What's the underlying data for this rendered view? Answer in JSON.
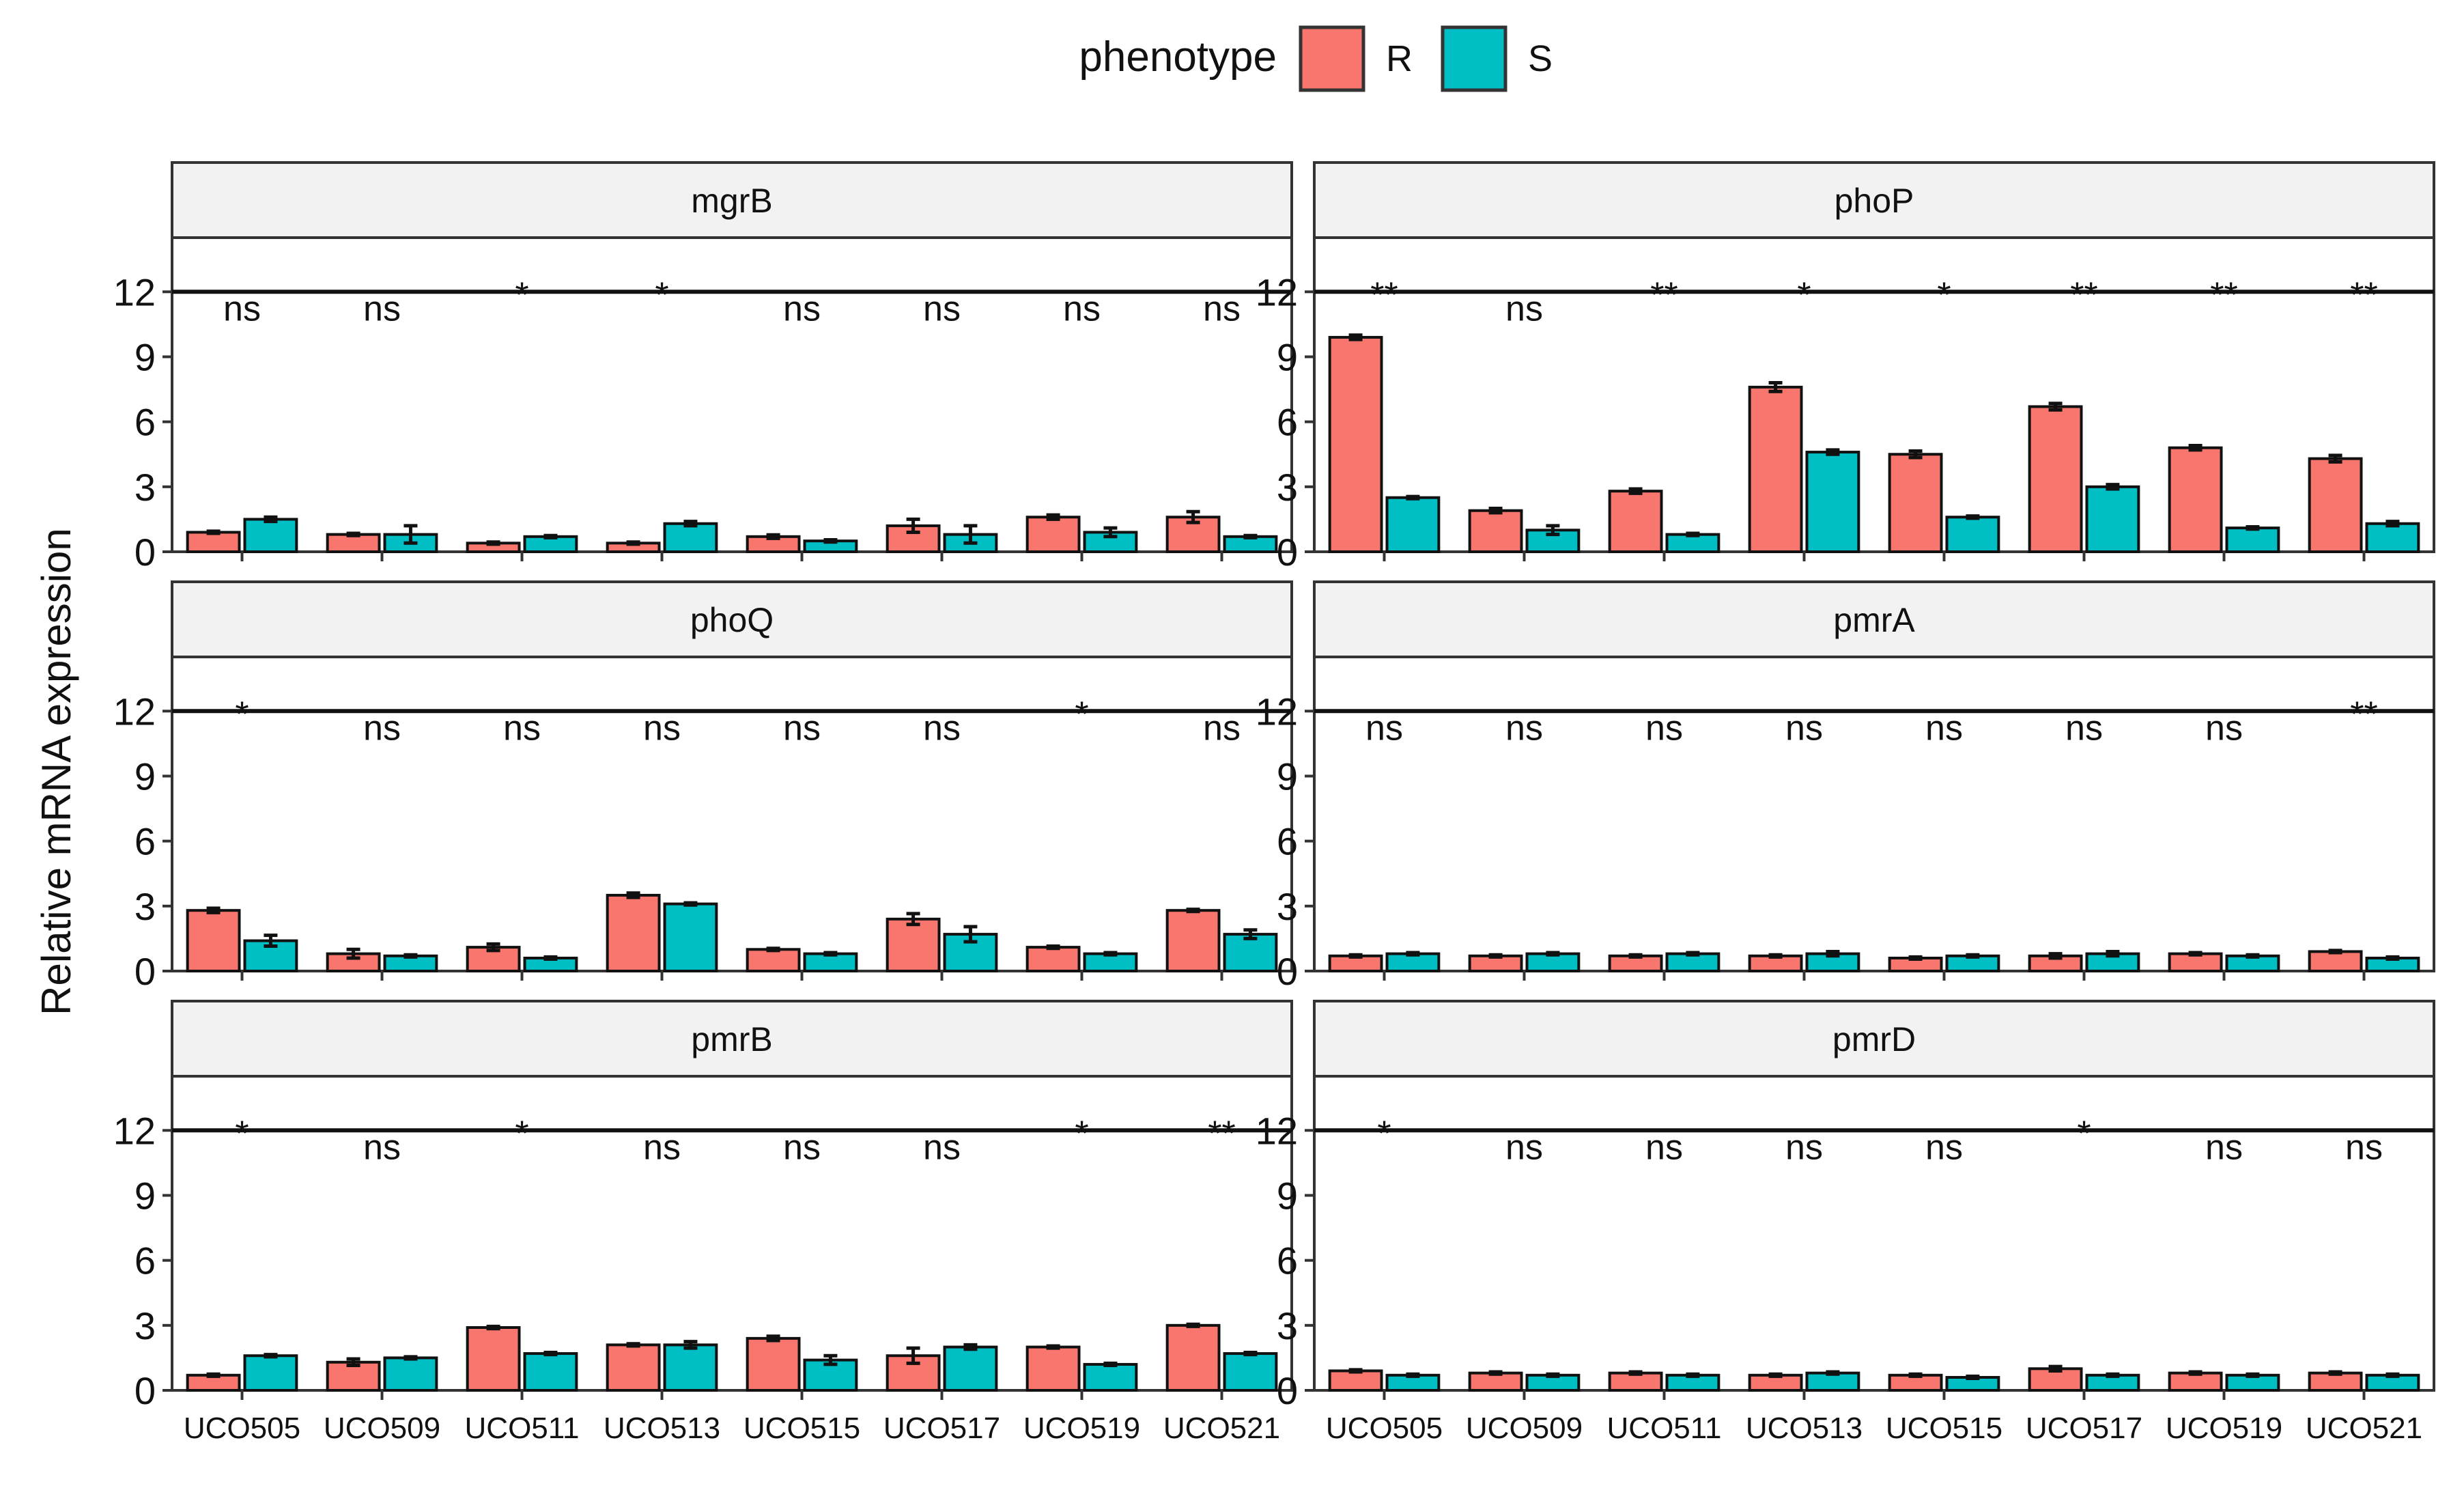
{
  "legend": {
    "title": "phenotype",
    "items": [
      {
        "label": "R",
        "color": "#F8766D"
      },
      {
        "label": "S",
        "color": "#00BFC4"
      }
    ]
  },
  "chart_data": {
    "type": "bar",
    "ylabel": "Relative mRNA expression",
    "ylim": [
      0,
      14.5
    ],
    "yticks": [
      0,
      3,
      6,
      9,
      12
    ],
    "categories": [
      "UCO505",
      "UCO509",
      "UCO511",
      "UCO513",
      "UCO515",
      "UCO517",
      "UCO519",
      "UCO521"
    ],
    "groups": [
      "R",
      "S"
    ],
    "colors": {
      "R": "#F8766D",
      "S": "#00BFC4"
    },
    "significance_line_y": 12,
    "panels": [
      {
        "gene": "mgrB",
        "R": [
          0.9,
          0.8,
          0.4,
          0.4,
          0.7,
          1.2,
          1.6,
          1.6
        ],
        "S": [
          1.5,
          0.8,
          0.7,
          1.3,
          0.5,
          0.8,
          0.9,
          0.7
        ],
        "R_err": [
          0.05,
          0.05,
          0.05,
          0.05,
          0.08,
          0.3,
          0.1,
          0.25
        ],
        "S_err": [
          0.1,
          0.4,
          0.05,
          0.1,
          0.05,
          0.4,
          0.2,
          0.05
        ],
        "sig": [
          "ns",
          "ns",
          "*",
          "*",
          "ns",
          "ns",
          "ns",
          "ns"
        ]
      },
      {
        "gene": "phoP",
        "R": [
          9.9,
          1.9,
          2.8,
          7.6,
          4.5,
          6.7,
          4.8,
          4.3
        ],
        "S": [
          2.5,
          1.0,
          0.8,
          4.6,
          1.6,
          3.0,
          1.1,
          1.3
        ],
        "R_err": [
          0.1,
          0.1,
          0.1,
          0.2,
          0.15,
          0.15,
          0.1,
          0.15
        ],
        "S_err": [
          0.05,
          0.2,
          0.05,
          0.1,
          0.05,
          0.1,
          0.05,
          0.1
        ],
        "sig": [
          "**",
          "ns",
          "**",
          "*",
          "*",
          "**",
          "**",
          "**"
        ]
      },
      {
        "gene": "phoQ",
        "R": [
          2.8,
          0.8,
          1.1,
          3.5,
          1.0,
          2.4,
          1.1,
          2.8
        ],
        "S": [
          1.4,
          0.7,
          0.6,
          3.1,
          0.8,
          1.7,
          0.8,
          1.7
        ],
        "R_err": [
          0.1,
          0.2,
          0.15,
          0.1,
          0.05,
          0.25,
          0.05,
          0.05
        ],
        "S_err": [
          0.25,
          0.05,
          0.05,
          0.05,
          0.05,
          0.35,
          0.05,
          0.2
        ],
        "sig": [
          "*",
          "ns",
          "ns",
          "ns",
          "ns",
          "ns",
          "*",
          "ns"
        ]
      },
      {
        "gene": "pmrA",
        "R": [
          0.7,
          0.7,
          0.7,
          0.7,
          0.6,
          0.7,
          0.8,
          0.9
        ],
        "S": [
          0.8,
          0.8,
          0.8,
          0.8,
          0.7,
          0.8,
          0.7,
          0.6
        ],
        "R_err": [
          0.05,
          0.05,
          0.05,
          0.05,
          0.05,
          0.1,
          0.05,
          0.05
        ],
        "S_err": [
          0.05,
          0.05,
          0.05,
          0.1,
          0.05,
          0.1,
          0.05,
          0.05
        ],
        "sig": [
          "ns",
          "ns",
          "ns",
          "ns",
          "ns",
          "ns",
          "ns",
          "**"
        ]
      },
      {
        "gene": "pmrB",
        "R": [
          0.7,
          1.3,
          2.9,
          2.1,
          2.4,
          1.6,
          2.0,
          3.0
        ],
        "S": [
          1.6,
          1.5,
          1.7,
          2.1,
          1.4,
          2.0,
          1.2,
          1.7
        ],
        "R_err": [
          0.05,
          0.15,
          0.05,
          0.05,
          0.1,
          0.35,
          0.05,
          0.05
        ],
        "S_err": [
          0.05,
          0.05,
          0.05,
          0.15,
          0.2,
          0.1,
          0.05,
          0.05
        ],
        "sig": [
          "*",
          "ns",
          "*",
          "ns",
          "ns",
          "ns",
          "*",
          "**"
        ]
      },
      {
        "gene": "pmrD",
        "R": [
          0.9,
          0.8,
          0.8,
          0.7,
          0.7,
          1.0,
          0.8,
          0.8
        ],
        "S": [
          0.7,
          0.7,
          0.7,
          0.8,
          0.6,
          0.7,
          0.7,
          0.7
        ],
        "R_err": [
          0.05,
          0.05,
          0.05,
          0.05,
          0.05,
          0.1,
          0.05,
          0.05
        ],
        "S_err": [
          0.05,
          0.05,
          0.05,
          0.05,
          0.05,
          0.05,
          0.05,
          0.05
        ],
        "sig": [
          "*",
          "ns",
          "ns",
          "ns",
          "ns",
          "*",
          "ns",
          "ns"
        ]
      }
    ]
  }
}
